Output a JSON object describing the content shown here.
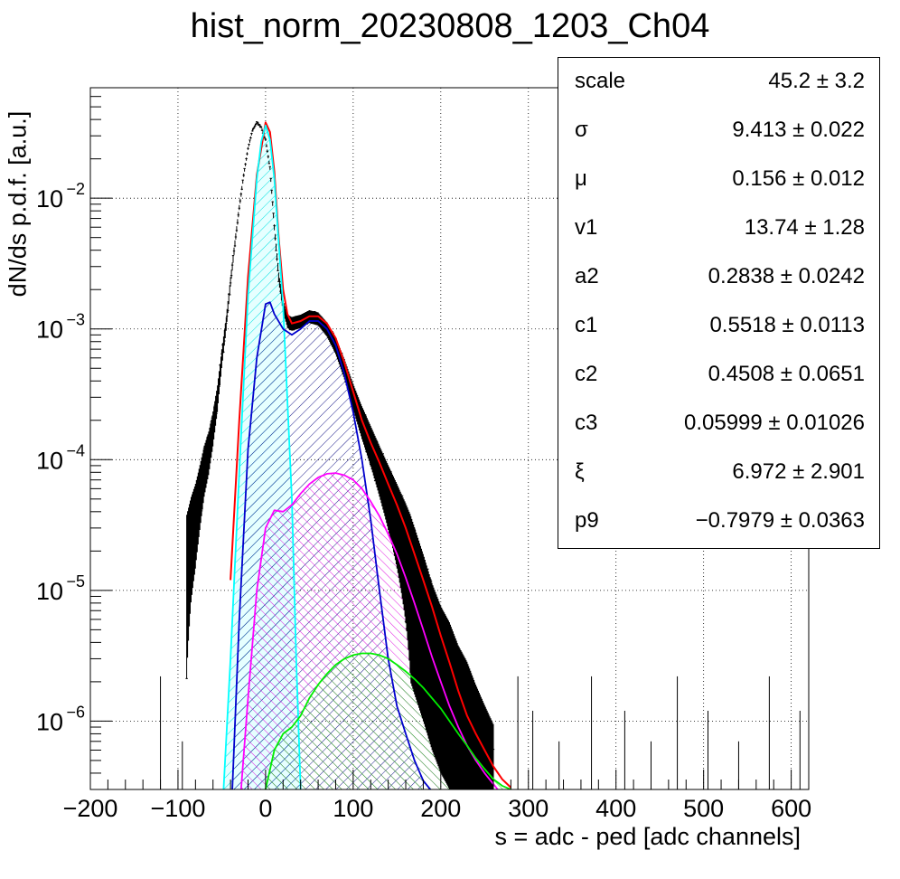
{
  "chart_data": {
    "type": "line",
    "title": "hist_norm_20230808_1203_Ch04",
    "xlabel": "s = adc - ped [adc channels]",
    "ylabel": "dN/ds p.d.f. [a.u.]",
    "xlim": [
      -200,
      620
    ],
    "ylim": [
      3e-07,
      0.07
    ],
    "yscale": "log",
    "grid": true,
    "xticks": [
      -200,
      -100,
      0,
      100,
      200,
      300,
      400,
      500,
      600
    ],
    "xtick_labels": [
      "−200",
      "−100",
      "0",
      "100",
      "200",
      "300",
      "400",
      "500",
      "600"
    ],
    "yticks": [
      1e-06,
      1e-05,
      0.0001,
      0.001,
      0.01
    ],
    "ytick_mantissa": "10",
    "ytick_exponents": [
      "−6",
      "−5",
      "−4",
      "−3",
      "−2"
    ],
    "series": [
      {
        "color": "#000000",
        "kind": "histogram",
        "x": [
          -90,
          -85,
          -80,
          -75,
          -70,
          -65,
          -60,
          -55,
          -50,
          -45,
          -40,
          -35,
          -30,
          -25,
          -20,
          -15,
          -10,
          -5,
          0,
          5,
          10,
          15,
          20,
          25,
          30,
          40,
          50,
          60,
          70,
          80,
          90,
          100,
          110,
          120,
          130,
          140,
          150,
          160,
          170,
          180,
          190,
          200,
          210,
          220,
          230,
          240,
          250,
          260
        ],
        "y": [
          2e-05,
          3e-05,
          4e-05,
          6e-05,
          9e-05,
          0.00012,
          0.00018,
          0.0003,
          0.0006,
          0.0011,
          0.0023,
          0.0045,
          0.0085,
          0.015,
          0.024,
          0.033,
          0.038,
          0.035,
          0.028,
          0.017,
          0.006,
          0.0025,
          0.0015,
          0.00115,
          0.0011,
          0.00115,
          0.00125,
          0.0012,
          0.001,
          0.00075,
          0.0005,
          0.00031,
          0.0002,
          0.000135,
          9e-05,
          6e-05,
          4e-05,
          2.6e-05,
          1.6e-05,
          1e-05,
          6e-06,
          4e-06,
          3e-06,
          2e-06,
          1.5e-06,
          1e-06,
          7e-07,
          5e-07
        ]
      },
      {
        "color": "#ff0000",
        "kind": "total-fit",
        "x": [
          -40,
          -30,
          -20,
          -10,
          0,
          5,
          10,
          15,
          20,
          25,
          30,
          40,
          50,
          60,
          70,
          80,
          90,
          100,
          110,
          120,
          130,
          140,
          150,
          160,
          170,
          180,
          190,
          200,
          210,
          220,
          230,
          240,
          250,
          260,
          270,
          280
        ],
        "y": [
          1.2e-05,
          0.0002,
          0.0025,
          0.015,
          0.038,
          0.032,
          0.016,
          0.005,
          0.002,
          0.0013,
          0.0011,
          0.00115,
          0.00125,
          0.00125,
          0.0011,
          0.00085,
          0.00055,
          0.00033,
          0.0002,
          0.000135,
          9.5e-05,
          6.5e-05,
          4.5e-05,
          3e-05,
          1.9e-05,
          1.2e-05,
          7.5e-06,
          4.5e-06,
          2.8e-06,
          1.7e-06,
          1.1e-06,
          8e-07,
          6e-07,
          4.5e-07,
          3.6e-07,
          3.1e-07
        ]
      },
      {
        "color": "#00ffff",
        "kind": "component",
        "x": [
          -48,
          -40,
          -30,
          -20,
          -10,
          -5,
          0,
          5,
          10,
          20,
          30,
          35,
          40
        ],
        "y": [
          3e-07,
          3e-06,
          8e-05,
          0.0018,
          0.014,
          0.027,
          0.036,
          0.028,
          0.014,
          0.0015,
          5e-05,
          3e-06,
          3e-07
        ]
      },
      {
        "color": "#0000cd",
        "kind": "component",
        "x": [
          -38,
          -30,
          -20,
          -10,
          0,
          5,
          10,
          20,
          30,
          40,
          50,
          60,
          70,
          80,
          90,
          100,
          110,
          120,
          130,
          140,
          150,
          160,
          170,
          180,
          188
        ],
        "y": [
          3e-07,
          6e-06,
          0.00012,
          0.0006,
          0.00155,
          0.0016,
          0.0013,
          0.001,
          0.0009,
          0.001,
          0.00115,
          0.00115,
          0.001,
          0.00075,
          0.00045,
          0.00023,
          0.0001,
          3.5e-05,
          1e-05,
          3e-06,
          1.3e-06,
          8e-07,
          5e-07,
          3.5e-07,
          3e-07
        ]
      },
      {
        "color": "#ff00ff",
        "kind": "component",
        "x": [
          -28,
          -20,
          -10,
          0,
          10,
          20,
          30,
          40,
          50,
          60,
          70,
          80,
          90,
          100,
          110,
          120,
          130,
          140,
          150,
          160,
          170,
          180,
          190,
          200,
          210,
          220,
          230,
          240,
          250,
          260,
          265
        ],
        "y": [
          3e-07,
          1.5e-06,
          1e-05,
          3e-05,
          4.1e-05,
          4e-05,
          4.5e-05,
          5.5e-05,
          6.5e-05,
          7.3e-05,
          7.8e-05,
          7.9e-05,
          7.6e-05,
          7e-05,
          6e-05,
          4.8e-05,
          3.7e-05,
          2.7e-05,
          1.9e-05,
          1.25e-05,
          8e-06,
          5e-06,
          3.1e-06,
          2e-06,
          1.3e-06,
          9e-07,
          6.5e-07,
          5e-07,
          4e-07,
          3.3e-07,
          3e-07
        ]
      },
      {
        "color": "#00ee00",
        "kind": "component",
        "x": [
          0,
          10,
          20,
          30,
          40,
          50,
          60,
          70,
          80,
          90,
          100,
          110,
          120,
          130,
          140,
          150,
          160,
          170,
          180,
          190,
          200,
          210,
          220,
          230,
          240,
          250,
          260,
          270,
          280
        ],
        "y": [
          3e-07,
          6e-07,
          8e-07,
          9e-07,
          1.1e-06,
          1.5e-06,
          1.9e-06,
          2.3e-06,
          2.7e-06,
          3e-06,
          3.2e-06,
          3.3e-06,
          3.3e-06,
          3.2e-06,
          3e-06,
          2.7e-06,
          2.4e-06,
          2.1e-06,
          1.8e-06,
          1.5e-06,
          1.25e-06,
          1e-06,
          8e-07,
          6.5e-07,
          5.2e-07,
          4.3e-07,
          3.6e-07,
          3.2e-07,
          3e-07
        ]
      }
    ]
  },
  "stats": [
    {
      "name": "scale",
      "value": "45.2 ± 3.2"
    },
    {
      "name": "σ",
      "value": "9.413 ± 0.022"
    },
    {
      "name": "μ",
      "value": "0.156 ± 0.012"
    },
    {
      "name": "v1",
      "value": "13.74 ± 1.28"
    },
    {
      "name": "a2",
      "value": "0.2838 ± 0.0242"
    },
    {
      "name": "c1",
      "value": "0.5518 ± 0.0113"
    },
    {
      "name": "c2",
      "value": "0.4508 ± 0.0651"
    },
    {
      "name": "c3",
      "value": "0.05999 ± 0.01026"
    },
    {
      "name": "ξ",
      "value": "6.972 ± 2.901"
    },
    {
      "name": "p9",
      "value": "−0.7979 ± 0.0363"
    }
  ]
}
